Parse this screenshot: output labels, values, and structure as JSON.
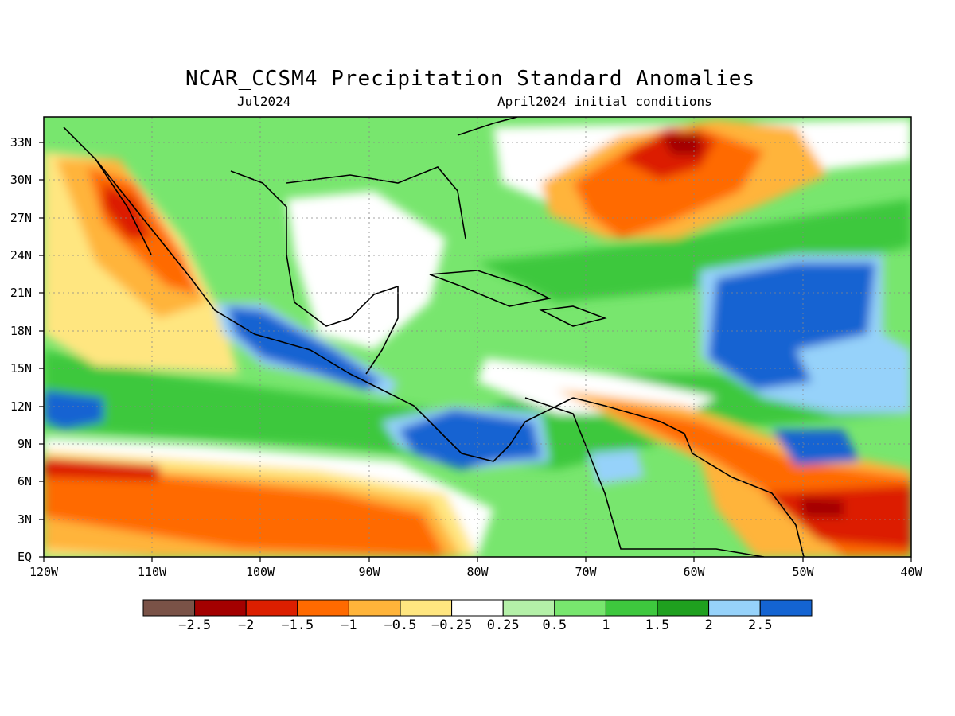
{
  "title": "NCAR_CCSM4 Precipitation Standard Anomalies",
  "subtitle_left": "Jul2024",
  "subtitle_right": "April2024 initial conditions",
  "x_axis_ticks": [
    "120W",
    "110W",
    "100W",
    "90W",
    "80W",
    "70W",
    "60W",
    "50W",
    "40W"
  ],
  "y_axis_ticks": [
    "33N",
    "30N",
    "27N",
    "24N",
    "21N",
    "18N",
    "15N",
    "12N",
    "9N",
    "6N",
    "3N",
    "EQ"
  ],
  "colorbar": {
    "colors": [
      "#7a5247",
      "#a30000",
      "#dc1f00",
      "#ff6a00",
      "#ffb43a",
      "#ffe680",
      "#ffffff",
      "#b4f0a8",
      "#78e66e",
      "#3ec83e",
      "#1fa01f",
      "#96d2fa",
      "#1464d2"
    ],
    "labels": [
      "−2.5",
      "−2",
      "−1.5",
      "−1",
      "−0.5",
      "−0.25",
      "0.25",
      "0.5",
      "1",
      "1.5",
      "2",
      "2.5"
    ]
  },
  "map": {
    "lon_range": [
      -120,
      -40
    ],
    "lat_range": [
      0,
      35
    ],
    "background_color": "#78e66e"
  }
}
